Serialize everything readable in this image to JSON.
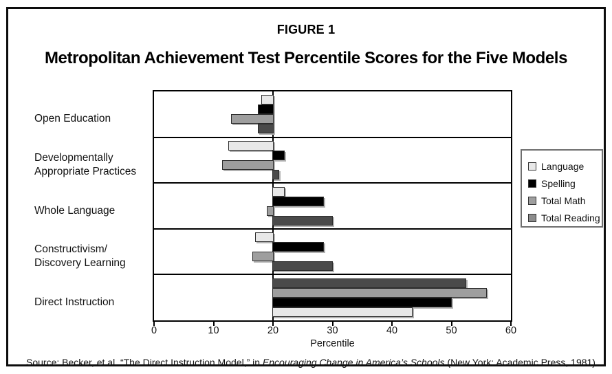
{
  "figure": {
    "label": "FIGURE 1",
    "title": "Metropolitan Achievement Test Percentile Scores for the Five Models"
  },
  "chart_data": {
    "type": "bar",
    "orientation": "horizontal",
    "baseline_value": 20,
    "xlabel": "Percentile",
    "xlim": [
      0,
      60
    ],
    "x_ticks": [
      0,
      10,
      20,
      30,
      40,
      50,
      60
    ],
    "grid": false,
    "legend_position": "right",
    "categories": [
      {
        "label_lines": [
          "Open Education"
        ],
        "series_order": [
          0,
          1,
          2,
          3
        ]
      },
      {
        "label_lines": [
          "Developmentally",
          "Appropriate Practices"
        ],
        "series_order": [
          0,
          1,
          2,
          3
        ]
      },
      {
        "label_lines": [
          "Whole Language"
        ],
        "series_order": [
          0,
          1,
          2,
          3
        ]
      },
      {
        "label_lines": [
          "Constructivism/",
          "Discovery Learning"
        ],
        "series_order": [
          0,
          1,
          2,
          3
        ]
      },
      {
        "label_lines": [
          "Direct Instruction"
        ],
        "series_order": [
          3,
          2,
          1,
          0
        ]
      }
    ],
    "series": [
      {
        "name": "Language",
        "color": "#e8e8e8",
        "values": [
          18,
          12.5,
          22,
          17,
          43.5
        ]
      },
      {
        "name": "Spelling",
        "color": "#000000",
        "values": [
          17.5,
          22,
          28.5,
          28.5,
          50
        ]
      },
      {
        "name": "Total Math",
        "color": "#9e9e9e",
        "values": [
          13,
          11.5,
          19,
          16.5,
          56
        ]
      },
      {
        "name": "Total Reading",
        "color": "#4a4a4a",
        "values": [
          17.5,
          21,
          30,
          30,
          52.5
        ]
      }
    ]
  },
  "legend": {
    "items": [
      {
        "label": "Language",
        "swatch_color": "#e8e8e8"
      },
      {
        "label": "Spelling",
        "swatch_color": "#000000"
      },
      {
        "label": "Total Math",
        "swatch_color": "#9e9e9e"
      },
      {
        "label": "Total Reading",
        "swatch_color": "#8c8c8c"
      }
    ]
  },
  "source": {
    "prefix": "Source: Becker, et al. “The Direct Instruction Model,” in ",
    "italic": "Encouraging Change in America’s Schools",
    "suffix": " (New York: Academic Press, 1981)."
  }
}
